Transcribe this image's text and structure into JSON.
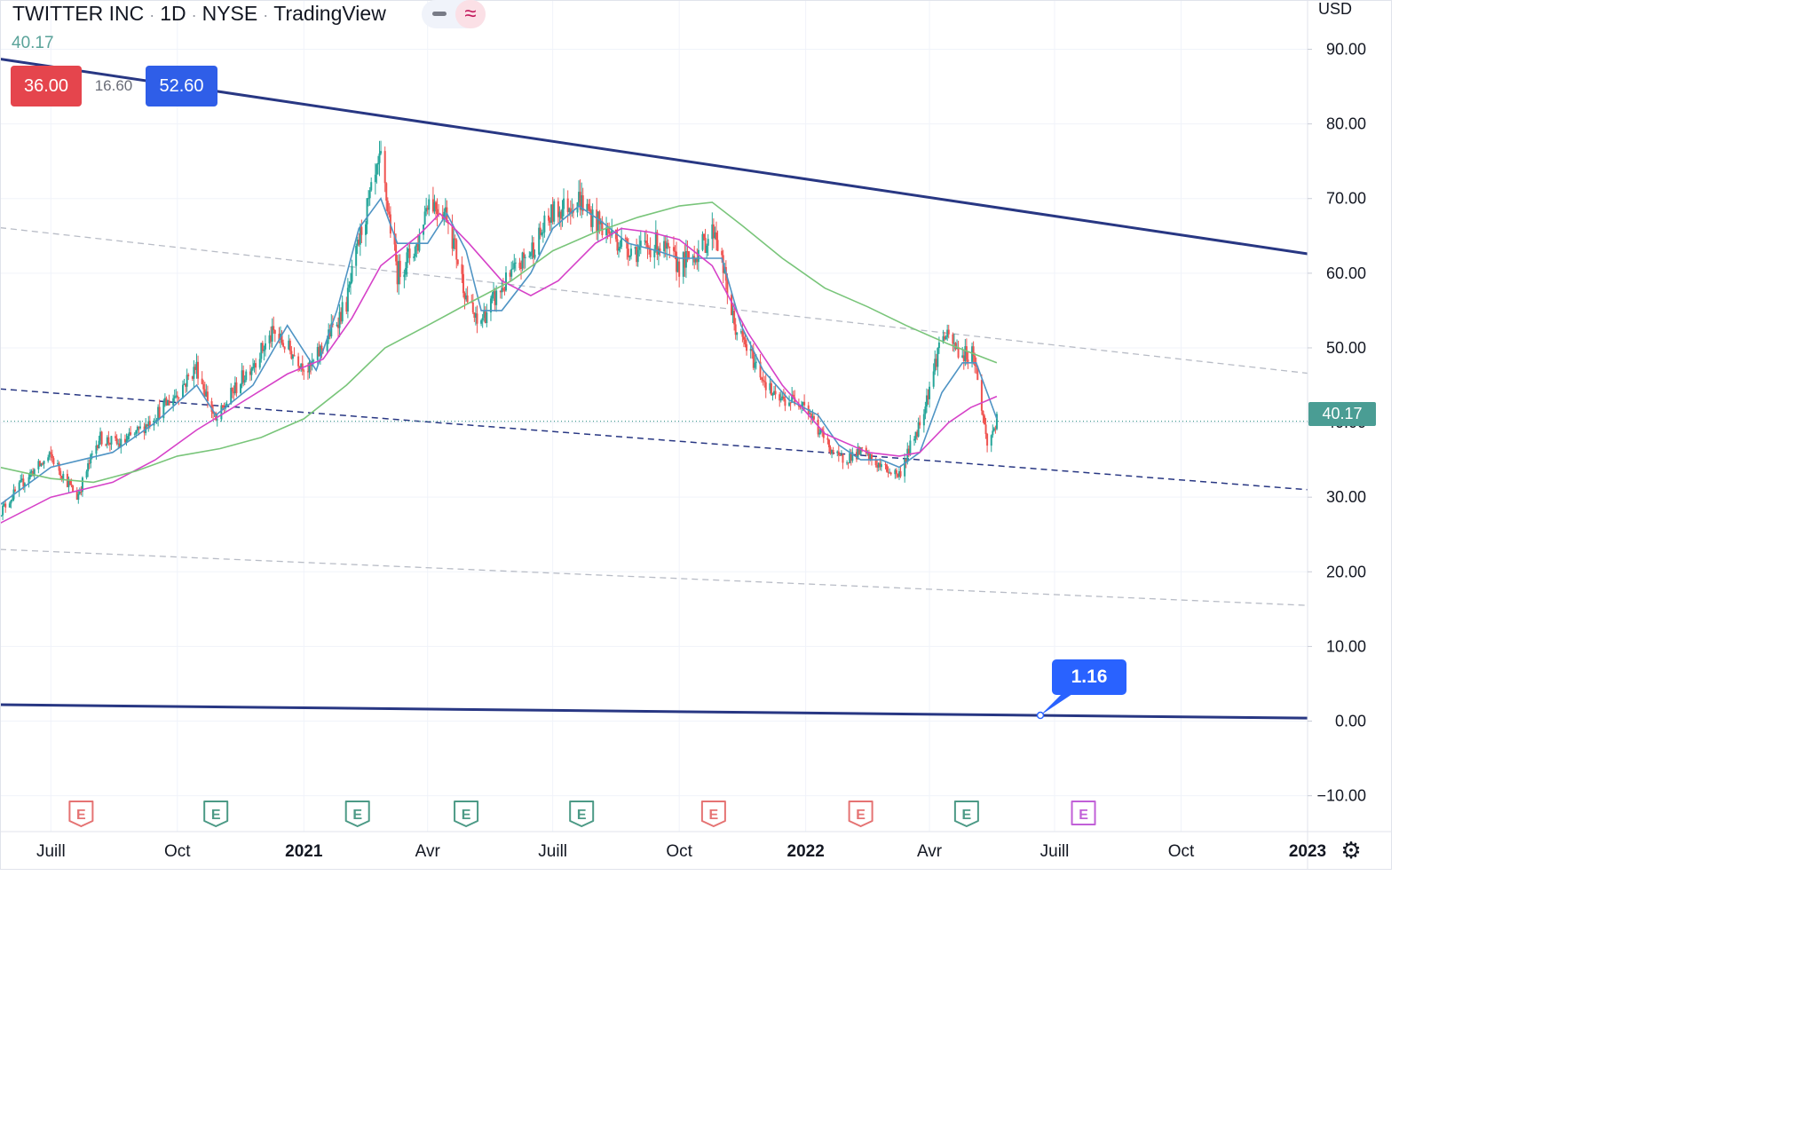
{
  "header": {
    "symbol": "TWITTER INC",
    "interval": "1D",
    "exchange": "NYSE",
    "provider": "TradingView",
    "sep": "·",
    "minus_icon": "minus-icon",
    "wave_icon": "approx-wave-icon",
    "wave_glyph": "≈"
  },
  "legend": {
    "last_value": "40.17",
    "low_value": "36.00",
    "range_value": "16.60",
    "high_value": "52.60"
  },
  "currency": "USD",
  "current_price": "40.17",
  "callout_value": "1.16",
  "settings_icon": "gear-icon",
  "colors": {
    "up": "#26a69a",
    "down": "#ef5350",
    "trendline": "#283783",
    "ma_fast": "#4f94c4",
    "ma_mid": "#d642c8",
    "ma_slow": "#79c57a",
    "earnings_red": "#e57373",
    "earnings_green": "#4c9a86",
    "earnings_purple": "#c160d8",
    "price_tag": "#4a9d94",
    "callout": "#2962ff"
  },
  "chart_data": {
    "type": "line",
    "title": "TWITTER INC · 1D · NYSE",
    "x_axis": {
      "labels": [
        "Juill",
        "Oct",
        "2021",
        "Avr",
        "Juill",
        "Oct",
        "2022",
        "Avr",
        "Juill",
        "Oct",
        "2023"
      ],
      "label_dates": [
        "2020-07-01",
        "2020-10-01",
        "2021-01-01",
        "2021-04-01",
        "2021-07-01",
        "2021-10-01",
        "2022-01-01",
        "2022-04-01",
        "2022-07-01",
        "2022-10-01",
        "2023-01-01"
      ],
      "bold": [
        "2021",
        "2022",
        "2023"
      ],
      "range": [
        "2020-05-25",
        "2023-01-01"
      ]
    },
    "y_axis": {
      "ticks": [
        "90.00",
        "80.00",
        "70.00",
        "60.00",
        "50.00",
        "40.00",
        "30.00",
        "20.00",
        "10.00",
        "0.00",
        "−10.00"
      ],
      "tick_values": [
        90,
        80,
        70,
        60,
        50,
        40,
        30,
        20,
        10,
        0,
        -10
      ],
      "range": [
        -14.8,
        96.6
      ]
    },
    "grid": true,
    "price_series": {
      "name": "",
      "x": [
        "2020-05-25",
        "2020-06-15",
        "2020-07-01",
        "2020-07-20",
        "2020-08-05",
        "2020-08-20",
        "2020-09-01",
        "2020-09-15",
        "2020-10-01",
        "2020-10-15",
        "2020-10-29",
        "2020-11-10",
        "2020-11-25",
        "2020-12-10",
        "2020-12-20",
        "2021-01-05",
        "2021-01-20",
        "2021-02-01",
        "2021-02-12",
        "2021-02-26",
        "2021-03-10",
        "2021-03-25",
        "2021-04-01",
        "2021-04-15",
        "2021-04-29",
        "2021-05-07",
        "2021-05-25",
        "2021-06-15",
        "2021-07-01",
        "2021-07-20",
        "2021-08-01",
        "2021-08-20",
        "2021-09-01",
        "2021-09-15",
        "2021-10-01",
        "2021-10-15",
        "2021-10-27",
        "2021-11-10",
        "2021-11-25",
        "2021-12-10",
        "2021-12-30",
        "2022-01-10",
        "2022-01-25",
        "2022-02-10",
        "2022-02-25",
        "2022-03-10",
        "2022-03-25",
        "2022-04-04",
        "2022-04-10",
        "2022-04-25",
        "2022-05-03",
        "2022-05-13",
        "2022-05-20"
      ],
      "close": [
        28,
        33,
        35.5,
        30,
        38,
        37,
        38.5,
        41,
        44,
        47.5,
        40,
        44,
        48,
        52,
        50,
        47,
        52,
        56,
        66,
        75,
        60,
        64,
        70,
        68,
        57,
        53,
        58,
        63,
        68,
        70,
        67,
        64,
        63,
        64,
        61,
        63,
        66,
        53,
        48,
        43,
        43,
        39,
        35,
        36,
        34,
        33,
        40,
        47,
        52,
        49,
        49.5,
        37,
        40.2
      ]
    },
    "moving_averages": [
      {
        "name": "",
        "color": "#4f94c4",
        "x": [
          "2020-05-25",
          "2020-07-01",
          "2020-08-15",
          "2020-09-15",
          "2020-10-15",
          "2020-10-29",
          "2020-11-25",
          "2020-12-20",
          "2021-01-10",
          "2021-01-25",
          "2021-02-10",
          "2021-02-26",
          "2021-03-10",
          "2021-04-01",
          "2021-04-15",
          "2021-04-29",
          "2021-05-10",
          "2021-05-25",
          "2021-06-15",
          "2021-07-01",
          "2021-07-20",
          "2021-08-05",
          "2021-08-25",
          "2021-09-15",
          "2021-10-01",
          "2021-10-15",
          "2021-11-01",
          "2021-11-15",
          "2021-12-01",
          "2021-12-20",
          "2022-01-10",
          "2022-01-25",
          "2022-02-10",
          "2022-02-25",
          "2022-03-10",
          "2022-03-25",
          "2022-04-10",
          "2022-04-25",
          "2022-05-05",
          "2022-05-20"
        ],
        "y": [
          29,
          34,
          36,
          40,
          45,
          41,
          45,
          53,
          47,
          55,
          66,
          70,
          64,
          64,
          68,
          63,
          55,
          55,
          60,
          66,
          69,
          67,
          64,
          63,
          62,
          62,
          62,
          53,
          47,
          43,
          41,
          37,
          35,
          35,
          34,
          36,
          44,
          48,
          48,
          40.5
        ]
      },
      {
        "name": "",
        "color": "#d642c8",
        "x": [
          "2020-05-25",
          "2020-07-01",
          "2020-08-15",
          "2020-09-15",
          "2020-10-15",
          "2020-11-15",
          "2020-12-20",
          "2021-01-15",
          "2021-02-05",
          "2021-02-26",
          "2021-03-25",
          "2021-04-10",
          "2021-05-01",
          "2021-05-25",
          "2021-06-15",
          "2021-07-05",
          "2021-08-01",
          "2021-08-20",
          "2021-09-10",
          "2021-10-01",
          "2021-10-25",
          "2021-11-20",
          "2021-12-15",
          "2022-01-15",
          "2022-02-15",
          "2022-03-10",
          "2022-03-25",
          "2022-04-15",
          "2022-05-01",
          "2022-05-20"
        ],
        "y": [
          26.5,
          30,
          32,
          35,
          39,
          42.5,
          46.5,
          48.5,
          54,
          61,
          65,
          68,
          64,
          59,
          57,
          59,
          64,
          66,
          65.5,
          64.5,
          61,
          52,
          45,
          38.5,
          36,
          35.5,
          36,
          40,
          42,
          43.5
        ]
      },
      {
        "name": "",
        "color": "#79c57a",
        "x": [
          "2020-05-25",
          "2020-07-01",
          "2020-08-01",
          "2020-09-01",
          "2020-10-01",
          "2020-11-01",
          "2020-12-01",
          "2021-01-01",
          "2021-02-01",
          "2021-03-01",
          "2021-04-01",
          "2021-05-01",
          "2021-06-01",
          "2021-07-01",
          "2021-08-01",
          "2021-09-01",
          "2021-10-01",
          "2021-10-25",
          "2021-11-15",
          "2021-12-15",
          "2022-01-15",
          "2022-02-15",
          "2022-03-15",
          "2022-04-15",
          "2022-05-20"
        ],
        "y": [
          34,
          32.5,
          32,
          33.5,
          35.5,
          36.5,
          38,
          40.5,
          45,
          50,
          53,
          56,
          59,
          63,
          65.5,
          67.5,
          69,
          69.5,
          66.5,
          62,
          58,
          55.5,
          53,
          50.5,
          48
        ]
      }
    ],
    "drawings": [
      {
        "type": "trendline",
        "style": "solid",
        "from": [
          "2020-05-25",
          88.7
        ],
        "to": [
          "2023-01-01",
          62.6
        ]
      },
      {
        "type": "trendline",
        "style": "solid",
        "from": [
          "2020-05-25",
          2.2
        ],
        "to": [
          "2023-01-01",
          0.4
        ]
      },
      {
        "type": "trendline",
        "style": "dashed",
        "from": [
          "2020-05-25",
          44.5
        ],
        "to": [
          "2023-01-01",
          31.0
        ]
      },
      {
        "type": "trendline",
        "style": "dashed-grey",
        "from": [
          "2020-05-25",
          66.1
        ],
        "to": [
          "2023-01-01",
          46.6
        ]
      },
      {
        "type": "trendline",
        "style": "dashed-grey",
        "from": [
          "2020-05-25",
          23.0
        ],
        "to": [
          "2023-01-01",
          15.5
        ]
      },
      {
        "type": "hline",
        "style": "dotted",
        "y": 40.17
      }
    ],
    "earnings_markers": [
      {
        "date": "2020-07-23",
        "label": "E",
        "status": "miss"
      },
      {
        "date": "2020-10-29",
        "label": "E",
        "status": "beat"
      },
      {
        "date": "2021-02-09",
        "label": "E",
        "status": "beat"
      },
      {
        "date": "2021-04-29",
        "label": "E",
        "status": "beat"
      },
      {
        "date": "2021-07-22",
        "label": "E",
        "status": "beat"
      },
      {
        "date": "2021-10-26",
        "label": "E",
        "status": "miss"
      },
      {
        "date": "2022-02-10",
        "label": "E",
        "status": "miss"
      },
      {
        "date": "2022-04-28",
        "label": "E",
        "status": "beat"
      },
      {
        "date": "2022-07-22",
        "label": "E",
        "status": "upcoming"
      }
    ]
  }
}
